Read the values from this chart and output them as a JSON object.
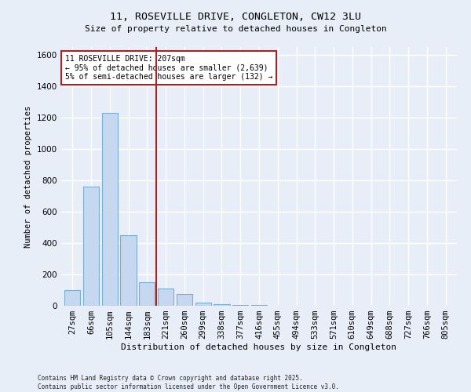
{
  "title": "11, ROSEVILLE DRIVE, CONGLETON, CW12 3LU",
  "subtitle": "Size of property relative to detached houses in Congleton",
  "xlabel": "Distribution of detached houses by size in Congleton",
  "ylabel": "Number of detached properties",
  "bins": [
    "27sqm",
    "66sqm",
    "105sqm",
    "144sqm",
    "183sqm",
    "221sqm",
    "260sqm",
    "299sqm",
    "338sqm",
    "377sqm",
    "416sqm",
    "455sqm",
    "494sqm",
    "533sqm",
    "571sqm",
    "610sqm",
    "649sqm",
    "688sqm",
    "727sqm",
    "766sqm",
    "805sqm"
  ],
  "values": [
    100,
    760,
    1230,
    450,
    150,
    110,
    75,
    20,
    8,
    5,
    3,
    2,
    1,
    1,
    0,
    0,
    0,
    0,
    0,
    0,
    0
  ],
  "bar_color": "#c5d8ef",
  "bar_edge_color": "#7aafd4",
  "vline_color": "#aa2222",
  "annotation_text": "11 ROSEVILLE DRIVE: 207sqm\n← 95% of detached houses are smaller (2,639)\n5% of semi-detached houses are larger (132) →",
  "annotation_box_color": "white",
  "annotation_box_edge": "#aa2222",
  "ylim_max": 1650,
  "yticks": [
    0,
    200,
    400,
    600,
    800,
    1000,
    1200,
    1400,
    1600
  ],
  "footer_line1": "Contains HM Land Registry data © Crown copyright and database right 2025.",
  "footer_line2": "Contains public sector information licensed under the Open Government Licence v3.0.",
  "bg_color": "#e8eef8",
  "plot_bg_color": "#e8eef8",
  "grid_color": "#ffffff"
}
